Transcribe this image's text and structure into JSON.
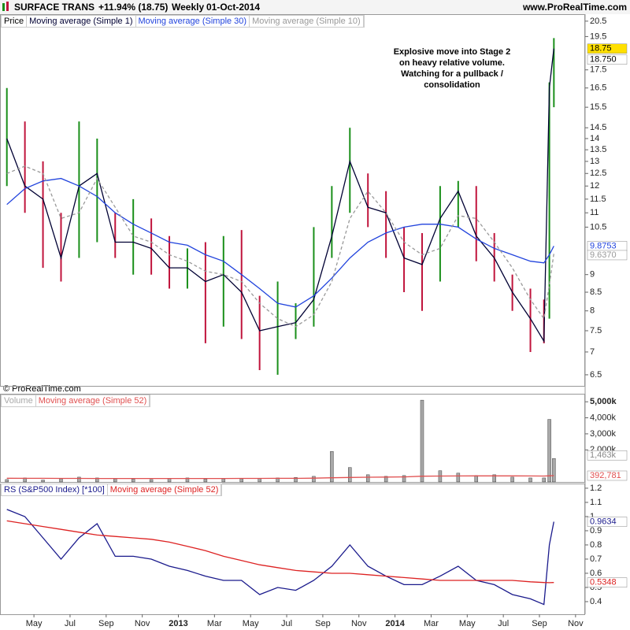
{
  "header": {
    "title": "SURFACE TRANS",
    "change": "+11.94% (18.75)",
    "period": "Weekly",
    "date": "01-Oct-2014",
    "site": "www.ProRealTime.com"
  },
  "copyright": "© ProRealTime.com",
  "chart_data": [
    {
      "type": "ohlc",
      "log_scale": true,
      "ylim": [
        6.27,
        20.97
      ],
      "yticks": [
        20.5,
        19.5,
        17.5,
        16.5,
        15.5,
        14.5,
        14,
        13.5,
        13,
        12.5,
        12,
        11.5,
        11,
        10.5,
        9,
        8.5,
        8,
        7.5,
        7,
        6.5
      ],
      "xlim": [
        2.12,
        34.53
      ],
      "xticks": [
        {
          "value": 4,
          "label": "May"
        },
        {
          "value": 6,
          "label": "Jul"
        },
        {
          "value": 8,
          "label": "Sep"
        },
        {
          "value": 10,
          "label": "Nov"
        },
        {
          "value": 12,
          "label": "2013"
        },
        {
          "value": 14,
          "label": "Mar"
        },
        {
          "value": 16,
          "label": "May"
        },
        {
          "value": 18,
          "label": "Jul"
        },
        {
          "value": 20,
          "label": "Sep"
        },
        {
          "value": 22,
          "label": "Nov"
        },
        {
          "value": 24,
          "label": "2014"
        },
        {
          "value": 26,
          "label": "Mar"
        },
        {
          "value": 28,
          "label": "May"
        },
        {
          "value": 30,
          "label": "Jul"
        },
        {
          "value": 32,
          "label": "Sep"
        },
        {
          "value": 34,
          "label": "Nov"
        }
      ],
      "x": [
        2.5,
        3.5,
        4.5,
        5.5,
        6.5,
        7.5,
        8.5,
        9.5,
        10.5,
        11.5,
        12.5,
        13.5,
        14.5,
        15.5,
        16.5,
        17.5,
        18.5,
        19.5,
        20.5,
        21.5,
        22.5,
        23.5,
        24.5,
        25.5,
        26.5,
        27.5,
        28.5,
        29.5,
        30.5,
        31.5,
        32.25,
        32.55,
        32.8
      ],
      "series": [
        {
          "name": "Price",
          "type": "hilo",
          "up_color": "#1a8f1a",
          "down_color": "#c0143c",
          "high": [
            16.5,
            14.8,
            13.0,
            11.0,
            14.8,
            14.0,
            11.0,
            11.5,
            10.8,
            10.2,
            9.8,
            10.0,
            10.2,
            10.4,
            8.4,
            8.8,
            8.2,
            10.5,
            12.0,
            14.5,
            12.5,
            11.8,
            10.5,
            10.3,
            12.0,
            12.2,
            12.0,
            10.3,
            9.0,
            8.6,
            8.3,
            16.8,
            19.4
          ],
          "low": [
            12.0,
            11.0,
            9.2,
            8.8,
            9.5,
            10.0,
            9.5,
            9.0,
            9.0,
            8.6,
            8.6,
            7.2,
            7.6,
            7.3,
            6.6,
            6.5,
            7.3,
            7.6,
            9.5,
            11.0,
            10.5,
            9.5,
            8.5,
            8.0,
            8.8,
            10.5,
            9.4,
            8.8,
            8.0,
            7.0,
            7.2,
            7.8,
            15.5
          ]
        },
        {
          "name": "Moving average (Simple 1)",
          "type": "line",
          "color": "#000033",
          "last_value_label": "18.750",
          "values": [
            14.0,
            12.0,
            11.5,
            9.5,
            12.0,
            12.5,
            10.0,
            10.0,
            9.8,
            9.2,
            9.2,
            8.8,
            9.0,
            8.5,
            7.5,
            7.6,
            7.7,
            8.3,
            10.2,
            13.0,
            11.2,
            11.0,
            9.5,
            9.3,
            10.8,
            11.8,
            10.2,
            9.5,
            8.5,
            7.8,
            7.25,
            16.5,
            18.75
          ]
        },
        {
          "name": "Moving average (Simple 30)",
          "type": "line",
          "color": "#2244dd",
          "values": [
            11.3,
            11.9,
            12.2,
            12.3,
            12.0,
            11.6,
            11.0,
            10.6,
            10.3,
            10.0,
            9.9,
            9.6,
            9.4,
            9.0,
            8.6,
            8.2,
            8.1,
            8.4,
            8.9,
            9.5,
            10.0,
            10.3,
            10.5,
            10.6,
            10.6,
            10.5,
            10.1,
            9.8,
            9.6,
            9.4,
            9.35,
            9.6,
            9.8753
          ]
        },
        {
          "name": "Moving average (Simple 10)",
          "type": "line",
          "color": "#999999",
          "dashed": true,
          "last_value_label": "9.6370",
          "values": [
            12.5,
            12.8,
            12.5,
            10.8,
            11.0,
            12.3,
            11.2,
            10.2,
            10.0,
            9.6,
            9.4,
            9.1,
            9.0,
            8.8,
            8.2,
            7.8,
            7.6,
            7.9,
            8.8,
            10.8,
            11.8,
            11.0,
            10.0,
            9.6,
            9.8,
            10.9,
            10.8,
            10.0,
            9.2,
            8.3,
            7.8,
            8.7,
            9.637
          ]
        }
      ],
      "annotation": [
        "Explosive move into Stage 2",
        "on heavy relative volume.",
        "Watching for a pullback /",
        "consolidation"
      ]
    },
    {
      "type": "bar",
      "ylim": [
        0,
        5500000
      ],
      "yticks": [
        {
          "value": 5000000,
          "label": "5,000k"
        },
        {
          "value": 4000000,
          "label": "4,000k"
        },
        {
          "value": 3000000,
          "label": "3,000k"
        },
        {
          "value": 2000000,
          "label": "2,000k"
        }
      ],
      "series": [
        {
          "name": "Volume",
          "type": "bar",
          "color": "#a8a8a8",
          "last_value_label": "1,463k",
          "values": [
            150000,
            250000,
            120000,
            200000,
            300000,
            250000,
            200000,
            180000,
            150000,
            220000,
            250000,
            180000,
            200000,
            200000,
            220000,
            250000,
            280000,
            350000,
            1900000,
            900000,
            450000,
            350000,
            400000,
            5100000,
            700000,
            550000,
            400000,
            450000,
            300000,
            250000,
            250000,
            3900000,
            1463000
          ]
        },
        {
          "name": "Moving average (Simple 52)",
          "type": "line",
          "color": "#e05050",
          "last_value_label": "392,781",
          "values": [
            230000,
            228000,
            225000,
            222000,
            220000,
            218000,
            216000,
            215000,
            214000,
            214000,
            215000,
            216000,
            218000,
            220000,
            222000,
            225000,
            228000,
            235000,
            260000,
            280000,
            295000,
            305000,
            315000,
            360000,
            370000,
            375000,
            378000,
            380000,
            378000,
            372000,
            370000,
            385000,
            392781
          ]
        }
      ]
    },
    {
      "type": "line",
      "ylim": [
        0.311,
        1.233
      ],
      "yticks": [
        1.2,
        1.1,
        1,
        0.9,
        0.8,
        0.7,
        0.6,
        0.5,
        0.4
      ],
      "series": [
        {
          "name": "RS (S&P500 Index) [*100]",
          "type": "line",
          "color": "#1a1a8c",
          "values": [
            1.05,
            1.0,
            0.85,
            0.7,
            0.85,
            0.95,
            0.72,
            0.72,
            0.7,
            0.65,
            0.62,
            0.58,
            0.55,
            0.55,
            0.45,
            0.5,
            0.48,
            0.55,
            0.65,
            0.8,
            0.65,
            0.58,
            0.52,
            0.52,
            0.58,
            0.65,
            0.55,
            0.52,
            0.45,
            0.42,
            0.38,
            0.8,
            0.9634
          ]
        },
        {
          "name": "Moving average (Simple 52)",
          "type": "line",
          "color": "#dd2222",
          "values": [
            0.97,
            0.95,
            0.93,
            0.91,
            0.89,
            0.87,
            0.86,
            0.85,
            0.84,
            0.82,
            0.79,
            0.76,
            0.72,
            0.69,
            0.66,
            0.64,
            0.62,
            0.61,
            0.6,
            0.6,
            0.59,
            0.58,
            0.57,
            0.56,
            0.55,
            0.55,
            0.55,
            0.55,
            0.55,
            0.54,
            0.535,
            0.534,
            0.5348
          ]
        }
      ]
    }
  ]
}
